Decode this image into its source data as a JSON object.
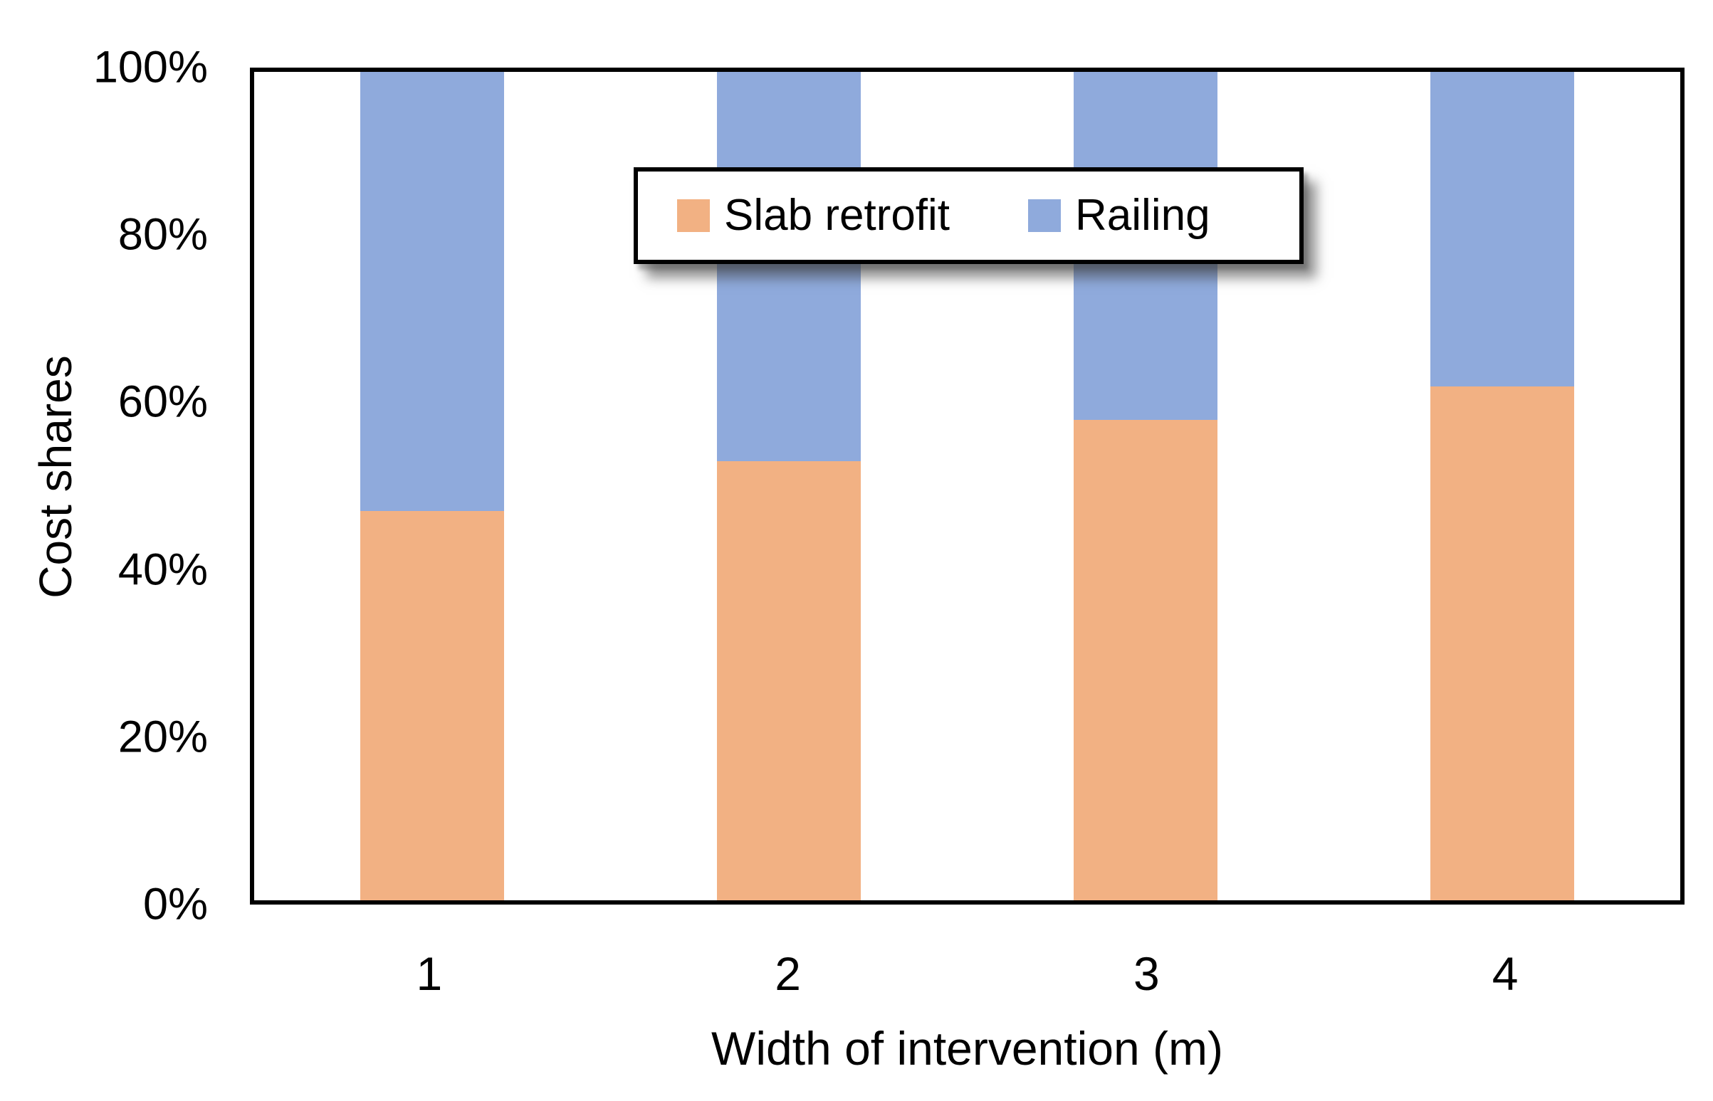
{
  "chart_data": {
    "type": "bar",
    "stacked": true,
    "stacked_percent": true,
    "categories": [
      "1",
      "2",
      "3",
      "4"
    ],
    "series": [
      {
        "name": "Slab retrofit",
        "color": "#F2B183",
        "values": [
          47,
          53,
          58,
          62
        ]
      },
      {
        "name": "Railing",
        "color": "#8FAADC",
        "values": [
          53,
          47,
          42,
          38
        ]
      }
    ],
    "xlabel": "Width of intervention (m)",
    "ylabel": "Cost shares",
    "yticks": [
      "0%",
      "20%",
      "40%",
      "60%",
      "80%",
      "100%"
    ],
    "ylim": [
      0,
      100
    ],
    "grid": false,
    "legend_position": "inside-top-center",
    "plot_border_color": "#000000",
    "background_color": "#FFFFFF"
  }
}
